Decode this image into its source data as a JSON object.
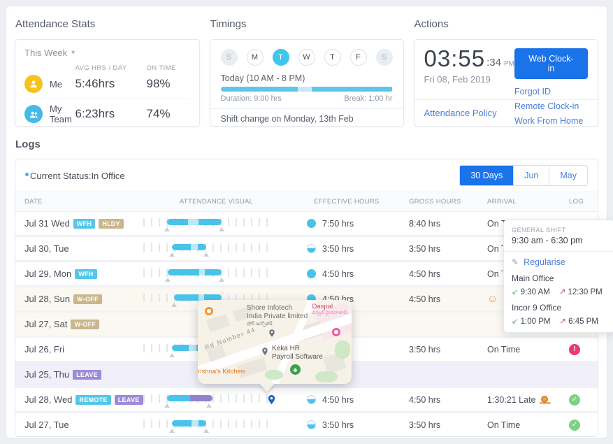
{
  "colors": {
    "accent": "#1a73e8",
    "sky_blue": "#49c3ea",
    "light_blue": "#bfe7f6",
    "purple": "#9480d2",
    "tan": "#c9b68e",
    "green": "#7ed184",
    "pink": "#ea3a70",
    "yellow": "#f6c21d"
  },
  "attendance_stats": {
    "title": "Attendance Stats",
    "period": "This Week",
    "col_avg": "AVG HRS / DAY",
    "col_ontime": "ON TIME",
    "rows": [
      {
        "name": "Me",
        "avatar": "person-yellow",
        "avg": "5:46hrs",
        "ontime": "98%"
      },
      {
        "name": "My Team",
        "avatar": "people-blue",
        "avg": "6:23hrs",
        "ontime": "74%"
      }
    ]
  },
  "timings": {
    "title": "Timings",
    "days": [
      {
        "label": "S",
        "state": "weekend"
      },
      {
        "label": "M",
        "state": "normal"
      },
      {
        "label": "T",
        "state": "active"
      },
      {
        "label": "W",
        "state": "normal"
      },
      {
        "label": "T",
        "state": "normal"
      },
      {
        "label": "F",
        "state": "normal"
      },
      {
        "label": "S",
        "state": "weekend"
      }
    ],
    "today_label": "Today (10 AM - 8 PM)",
    "bar_segments": [
      {
        "w": 45,
        "c": "blue"
      },
      {
        "w": 8,
        "c": "light"
      },
      {
        "w": 47,
        "c": "blue"
      }
    ],
    "duration_label": "Duration: 9:00 hrs",
    "break_label": "Break: 1:00 hr",
    "shift_note": "Shift change on Monday, 13th Feb"
  },
  "actions": {
    "title": "Actions",
    "clock_hhmm": "03:55",
    "clock_ss": ":34",
    "clock_ampm": "PM",
    "date": "Fri 08, Feb 2019",
    "primary_button": "Web Clock-in",
    "links": [
      "Forgot ID",
      "Remote Clock-in",
      "Work From Home"
    ],
    "policy_link": "Attendance Policy"
  },
  "logs": {
    "title": "Logs",
    "status_label": "Current Status:",
    "status_value": "In Office",
    "filters": [
      {
        "label": "30 Days",
        "active": true
      },
      {
        "label": "Jun",
        "active": false
      },
      {
        "label": "May",
        "active": false
      }
    ],
    "columns": [
      "DATE",
      "ATTENDANCE VISUAL",
      "EFFECTIVE HOURS",
      "GROSS HOURS",
      "ARRIVAL",
      "LOG"
    ],
    "rows": [
      {
        "date": "Jul 31 Wed",
        "badges": [
          {
            "text": "WFH",
            "color": "blue"
          },
          {
            "text": "HLDY",
            "color": "tan"
          }
        ],
        "segments": [
          [
            19,
            16.5,
            "blue"
          ],
          [
            35.5,
            8.5,
            "light"
          ],
          [
            44,
            18,
            "blue"
          ]
        ],
        "markers": [
          19,
          62
        ],
        "pin": false,
        "effective": "7:50 hrs",
        "fill": "full",
        "gross": "8:40 hrs",
        "arrival": "On Time",
        "arrival_icon": null,
        "log": null,
        "bg": "white"
      },
      {
        "date": "Jul 30, Tue",
        "badges": [],
        "segments": [
          [
            23,
            14.7,
            "blue"
          ],
          [
            37.7,
            5.6,
            "light"
          ],
          [
            43.3,
            6.7,
            "blue"
          ]
        ],
        "markers": [
          23,
          50
        ],
        "pin": false,
        "effective": "3:50 hrs",
        "fill": "half",
        "gross": "3:50 hrs",
        "arrival": "On Time",
        "arrival_icon": null,
        "log": null,
        "bg": "white"
      },
      {
        "date": "Jul 29, Mon",
        "badges": [
          {
            "text": "WFH",
            "color": "blue"
          }
        ],
        "segments": [
          [
            19.4,
            25,
            "blue"
          ],
          [
            44.4,
            4.6,
            "light"
          ],
          [
            49,
            13,
            "blue"
          ]
        ],
        "markers": [
          19.4,
          62
        ],
        "pin": false,
        "effective": "4:50 hrs",
        "fill": "full",
        "gross": "4:50 hrs",
        "arrival": "On Time",
        "arrival_icon": null,
        "log": null,
        "bg": "white"
      },
      {
        "date": "Jul 28, Sun",
        "badges": [
          {
            "text": "W-OFF",
            "color": "tan"
          }
        ],
        "segments": [
          [
            24.4,
            19.5,
            "blue"
          ],
          [
            43.9,
            4.4,
            "light"
          ],
          [
            48.3,
            13.7,
            "blue"
          ]
        ],
        "markers": [
          24.4,
          62
        ],
        "pin": false,
        "effective": "4:50 hrs",
        "fill": "full",
        "gross": "4:50 hrs",
        "arrival": "",
        "arrival_icon": "smiley",
        "log": null,
        "bg": "cream"
      },
      {
        "date": "Jul 27, Sat",
        "badges": [
          {
            "text": "W-OFF",
            "color": "tan"
          }
        ],
        "segments": [],
        "markers": [],
        "pin": false,
        "effective": "",
        "fill": null,
        "gross": "",
        "arrival": "",
        "arrival_icon": null,
        "log": null,
        "bg": "cream"
      },
      {
        "date": "Jul 26, Fri",
        "badges": [],
        "segments": [
          [
            23,
            13,
            "blue"
          ],
          [
            36,
            6,
            "light"
          ],
          [
            42,
            8,
            "blue"
          ]
        ],
        "markers": [
          23
        ],
        "pin": false,
        "effective": "",
        "fill": null,
        "gross": "3:50 hrs",
        "arrival": "On Time",
        "arrival_icon": null,
        "log": "alert",
        "bg": "white"
      },
      {
        "date": "Jul 25, Thu",
        "badges": [
          {
            "text": "LEAVE",
            "color": "purple"
          }
        ],
        "segments": [],
        "markers": [],
        "pin": false,
        "effective": "",
        "fill": null,
        "gross": "",
        "arrival": "",
        "arrival_icon": null,
        "log": null,
        "bg": "lavender"
      },
      {
        "date": "Jul 28, Wed",
        "badges": [
          {
            "text": "REMOTE",
            "color": "blue"
          },
          {
            "text": "LEAVE",
            "color": "purple"
          }
        ],
        "segments": [
          [
            18.9,
            18.3,
            "blue"
          ],
          [
            37.2,
            17.8,
            "purple"
          ]
        ],
        "markers": [
          19,
          52
        ],
        "pin": true,
        "effective": "4:50 hrs",
        "fill": "half",
        "gross": "4:50 hrs",
        "arrival": "1:30:21 Late",
        "arrival_icon": "snail",
        "log": "check",
        "bg": "white"
      },
      {
        "date": "Jul 27, Tue",
        "badges": [],
        "segments": [
          [
            23,
            15.3,
            "blue"
          ],
          [
            38.3,
            5.6,
            "light"
          ],
          [
            43.9,
            6.1,
            "blue"
          ]
        ],
        "markers": [
          23,
          50
        ],
        "pin": false,
        "effective": "3:50 hrs",
        "fill": "half",
        "gross": "3:50 hrs",
        "arrival": "On Time",
        "arrival_icon": null,
        "log": "check",
        "bg": "white"
      }
    ]
  },
  "popover": {
    "shift_label": "GENERAL SHIFT",
    "shift_time": "9:30 am - 6:30 pm",
    "action": "Regularise",
    "entries": [
      {
        "location": "Main Office",
        "in": "9:30 AM",
        "out": "12:30 PM"
      },
      {
        "location": "Incor 9 Office",
        "in": "1:00 PM",
        "out": "6:45 PM"
      }
    ]
  },
  "map": {
    "company_line1": "Shore Infotech",
    "company_line2": "India Private limited",
    "company_native": "షోర్ ఇన్ఫోటెక్",
    "road": "Rd Number 44",
    "keka_line1": "Keka HR",
    "keka_line2": "Payroll Software",
    "restaurant": "Krishna's Kitchen",
    "area": "Daspal",
    "area_native": "దస్పల్ హైదరాబాద్"
  }
}
